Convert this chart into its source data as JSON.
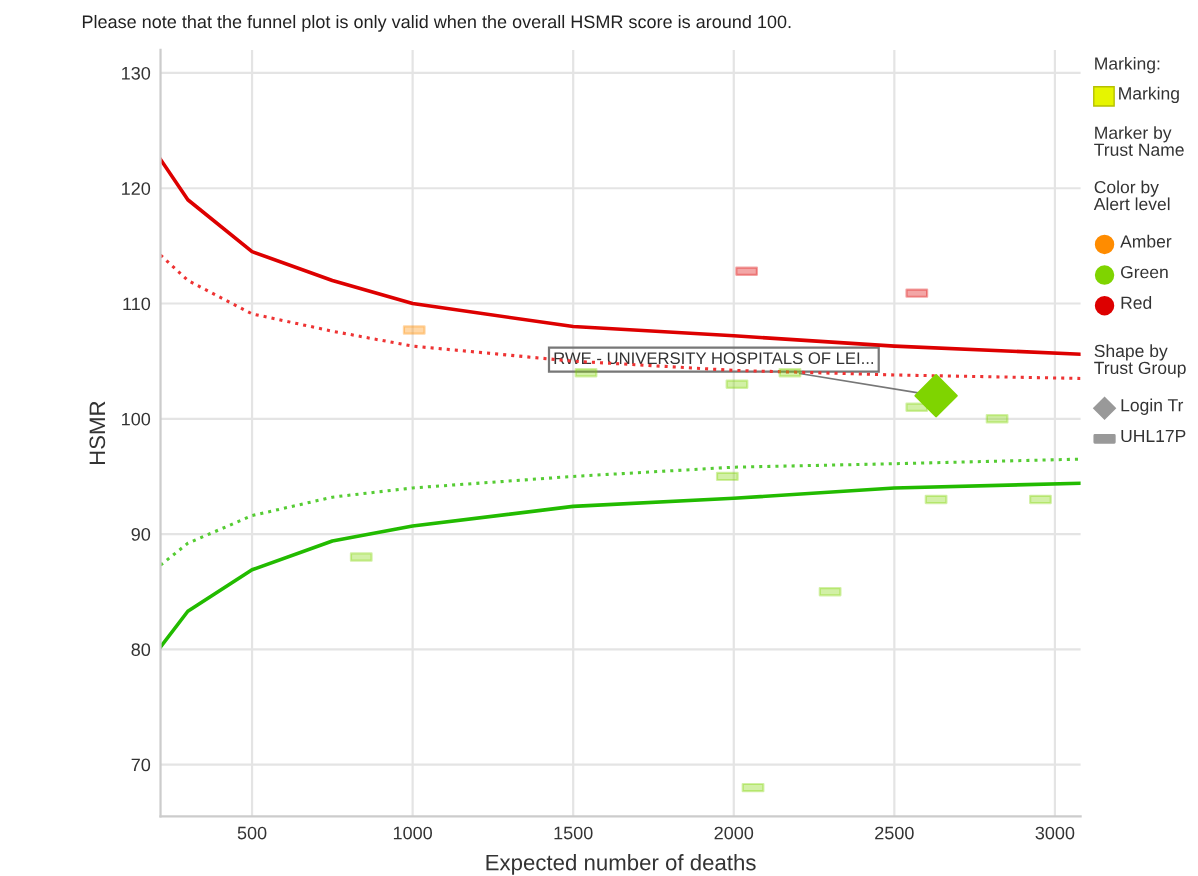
{
  "chart_data": {
    "type": "scatter",
    "annotations": [
      "Please note that the funnel plot is only valid when the overall HSMR score is around 100.",
      "Marking:",
      "Marking",
      "Marker by\nTrust Name",
      "Shape by\nTrust Group",
      "Login Tr",
      "UHL17P",
      {
        "text": "RWE - UNIVERSITY HOSPITALS OF LEI...",
        "x": 2630,
        "y": 102
      }
    ],
    "xlabel": "Expected number of deaths",
    "ylabel": "HSMR",
    "legend_title": "Color by\nAlert level",
    "xlim": [
      215,
      3080
    ],
    "ylim": [
      65.5,
      132
    ],
    "xticks": [
      500,
      1000,
      1500,
      2000,
      2500,
      3000
    ],
    "yticks": [
      70,
      80,
      90,
      100,
      110,
      120,
      130
    ],
    "grid": true,
    "legend": "right",
    "series": [
      {
        "type": "line",
        "color": "#dd0000",
        "line_style": "solid",
        "x": [
          215,
          300,
          500,
          750,
          1000,
          1500,
          2000,
          2500,
          3080
        ],
        "values": [
          122.5,
          119,
          114.5,
          112,
          110,
          108,
          107.2,
          106.3,
          105.6
        ]
      },
      {
        "type": "line",
        "color": "#ee3333",
        "line_style": "dotted",
        "x": [
          215,
          300,
          500,
          750,
          1000,
          1500,
          2000,
          2500,
          3080
        ],
        "values": [
          114.2,
          112,
          109.1,
          107.6,
          106.3,
          105,
          104.2,
          103.8,
          103.5
        ]
      },
      {
        "type": "line",
        "color": "#22bb00",
        "line_style": "solid",
        "x": [
          215,
          300,
          500,
          750,
          1000,
          1500,
          2000,
          2500,
          3080
        ],
        "values": [
          80.2,
          83.3,
          86.9,
          89.4,
          90.7,
          92.4,
          93.1,
          94,
          94.4
        ]
      },
      {
        "type": "line",
        "color": "#55cc33",
        "line_style": "dotted",
        "x": [
          215,
          300,
          500,
          750,
          1000,
          1500,
          2000,
          2500,
          3080
        ],
        "values": [
          87.3,
          89.2,
          91.6,
          93.2,
          94,
          95,
          95.8,
          96.1,
          96.5
        ]
      },
      {
        "name": "Amber",
        "color": "#ff8c00",
        "marker": "square",
        "x": [
          1005
        ],
        "values": [
          107.7
        ]
      },
      {
        "name": "Green",
        "color": "#7fd400",
        "marker": "square",
        "x": [
          840,
          1540,
          1980,
          2010,
          2060,
          2175,
          2300,
          2570,
          2630,
          2820,
          2955
        ],
        "values": [
          88,
          104,
          95,
          103,
          68,
          104,
          85,
          101,
          93,
          100,
          93
        ]
      },
      {
        "name": "Red",
        "color": "#dd0000",
        "marker": "square",
        "x": [
          2040,
          2570
        ],
        "values": [
          112.8,
          110.9
        ]
      },
      {
        "color": "#7fd400",
        "marker": "diamond",
        "x": [
          2630
        ],
        "values": [
          102
        ]
      }
    ]
  }
}
